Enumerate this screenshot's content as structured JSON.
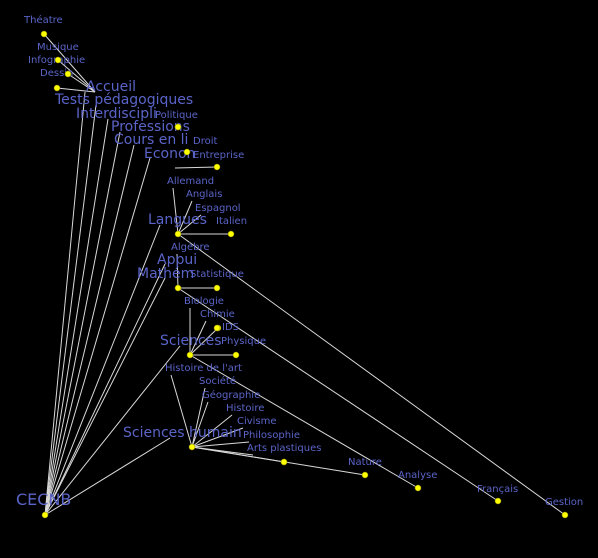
{
  "root": "CECNB",
  "groups": [
    "Accueil",
    "Tests pédagogiques",
    "Interdiscipli",
    "Professions",
    "Cours en li",
    "Econon",
    "Langues",
    "Appui",
    "Mathém",
    "Sciences",
    "Sciences humain"
  ],
  "leaves": [
    "Théatre",
    "Musique",
    "Infographie",
    "Dessin",
    "Politique",
    "Droit",
    "Entreprise",
    "Allemand",
    "Anglais",
    "Espagnol",
    "Italien",
    "Algèbre",
    "Statistique",
    "Biologie",
    "Chimie",
    "IDS",
    "Physique",
    "Histoire de l'art",
    "Société",
    "Géographie",
    "Histoire",
    "Civisme",
    "Philosophie",
    "Arts plastiques",
    "Nature",
    "Analyse",
    "Français",
    "Gestion"
  ]
}
